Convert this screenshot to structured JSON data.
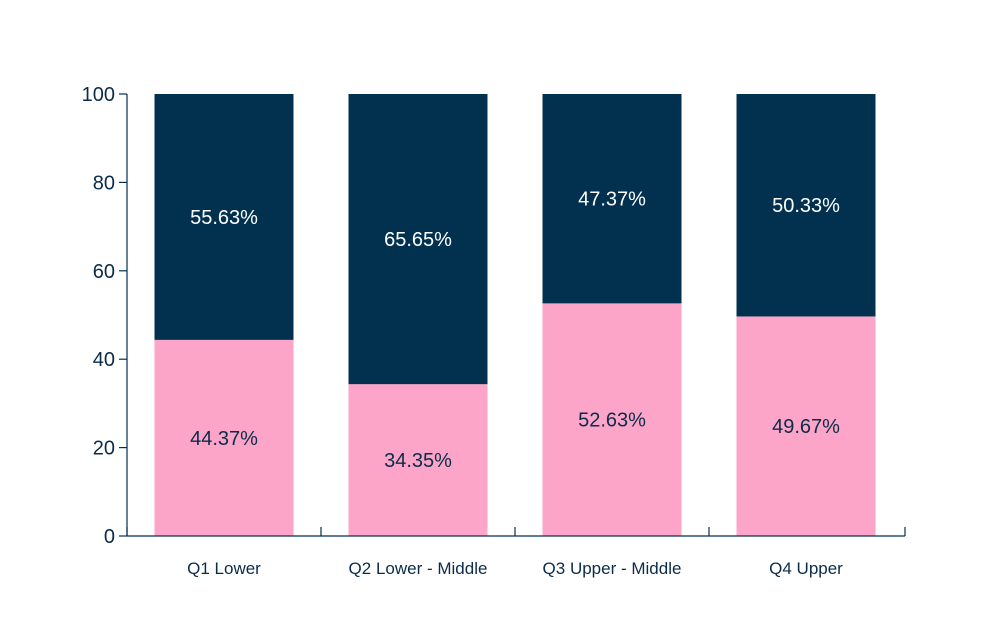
{
  "chart_data": {
    "type": "bar",
    "stacked": true,
    "categories": [
      "Q1 Lower",
      "Q2 Lower - Middle",
      "Q3 Upper - Middle",
      "Q4 Upper"
    ],
    "series": [
      {
        "values": [
          44.37,
          34.35,
          52.63,
          49.67
        ],
        "color": "#fca5c9"
      },
      {
        "values": [
          55.63,
          65.65,
          47.37,
          50.33
        ],
        "color": "#01314f"
      }
    ],
    "data_labels": [
      [
        "44.37%",
        "34.35%",
        "52.63%",
        "49.67%"
      ],
      [
        "55.63%",
        "65.65%",
        "47.37%",
        "50.33%"
      ]
    ],
    "yticks": [
      "0",
      "20",
      "40",
      "60",
      "80",
      "100"
    ],
    "ylim": [
      0,
      100
    ],
    "grid": false,
    "axis_color": "#01314f"
  }
}
